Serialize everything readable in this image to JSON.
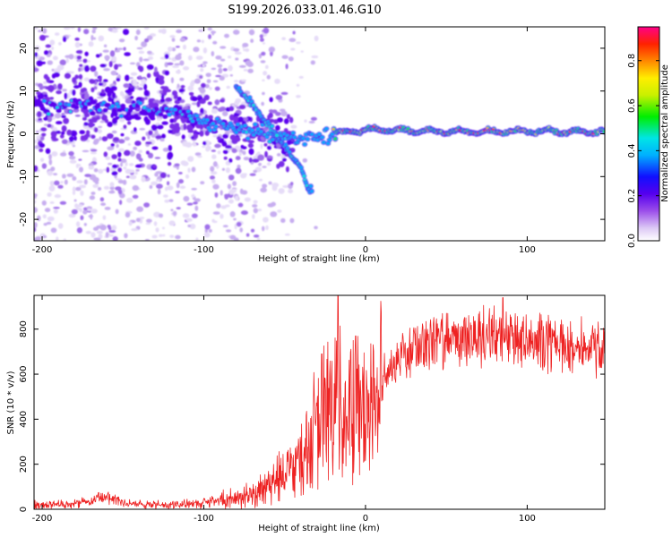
{
  "title": "S199.2026.033.01.46.G10",
  "chart_data": [
    {
      "type": "heatmap",
      "xlabel": "Height of straight line (km)",
      "ylabel": "Frequency (Hz)",
      "xlim": [
        -205,
        148
      ],
      "ylim": [
        -25,
        25
      ],
      "x_ticks": [
        -200,
        -100,
        0,
        100
      ],
      "y_ticks": [
        -20,
        -10,
        0,
        10,
        20
      ],
      "colorbar": {
        "label": "Normalized spectral amplitude",
        "range": [
          0,
          0.95
        ],
        "ticks": [
          0.0,
          0.2,
          0.4,
          0.6,
          0.8
        ],
        "colors": [
          "#ffffff",
          "#dcc8f5",
          "#9b4dea",
          "#5500ee",
          "#1010ff",
          "#00b0ff",
          "#00e5e5",
          "#00ee00",
          "#c8f000",
          "#ffee00",
          "#ff8800",
          "#ff2200",
          "#ff0088"
        ]
      },
      "ridges": [
        {
          "name": "main tone",
          "x": [
            -205,
            -180,
            -150,
            -120,
            -100,
            -80,
            -60,
            -40,
            -20,
            0,
            50,
            100,
            148
          ],
          "freq": [
            6,
            7,
            6,
            5,
            3,
            1,
            0,
            -1,
            0,
            1,
            0.5,
            0.5,
            0.5
          ]
        },
        {
          "name": "descending branch",
          "x": [
            -80,
            -70,
            -60,
            -50,
            -40,
            -35
          ],
          "freq": [
            11,
            7,
            2,
            -3,
            -8,
            -13
          ]
        }
      ]
    },
    {
      "type": "line",
      "xlabel": "Height of straight line (km)",
      "ylabel": "SNR (10 * v/v)",
      "xlim": [
        -205,
        148
      ],
      "ylim": [
        0,
        950
      ],
      "x_ticks": [
        -200,
        -100,
        0,
        100
      ],
      "y_ticks": [
        0,
        200,
        400,
        600,
        800
      ],
      "color": "#ee2222",
      "series": [
        {
          "name": "SNR",
          "x": [
            -205,
            -180,
            -160,
            -150,
            -120,
            -100,
            -80,
            -70,
            -60,
            -50,
            -40,
            -30,
            -20,
            -10,
            0,
            10,
            20,
            30,
            40,
            60,
            80,
            100,
            120,
            148
          ],
          "y": [
            20,
            22,
            55,
            25,
            18,
            28,
            45,
            70,
            110,
            170,
            260,
            380,
            460,
            500,
            460,
            560,
            650,
            710,
            740,
            760,
            770,
            760,
            730,
            710
          ]
        }
      ],
      "spikes": [
        {
          "x": -27,
          "y": 690
        },
        {
          "x": -17,
          "y": 950
        },
        {
          "x": -6,
          "y": 770
        },
        {
          "x": 85,
          "y": 940
        }
      ]
    }
  ]
}
